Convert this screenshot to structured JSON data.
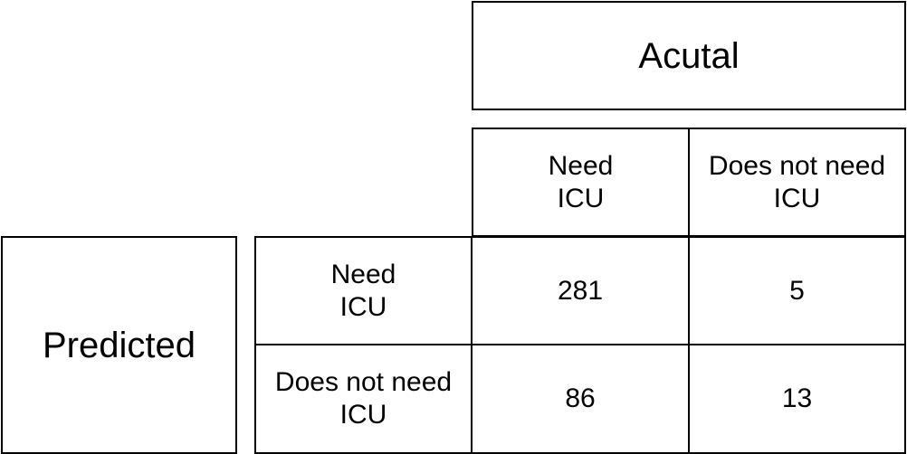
{
  "header": {
    "actual_label": "Acutal",
    "predicted_label": "Predicted"
  },
  "columns": [
    {
      "label": "Need\nICU"
    },
    {
      "label": "Does not need\nICU"
    }
  ],
  "rows": [
    {
      "label": "Need\nICU",
      "values": [
        "281",
        "5"
      ]
    },
    {
      "label": "Does not need\nICU",
      "values": [
        "86",
        "13"
      ]
    }
  ]
}
